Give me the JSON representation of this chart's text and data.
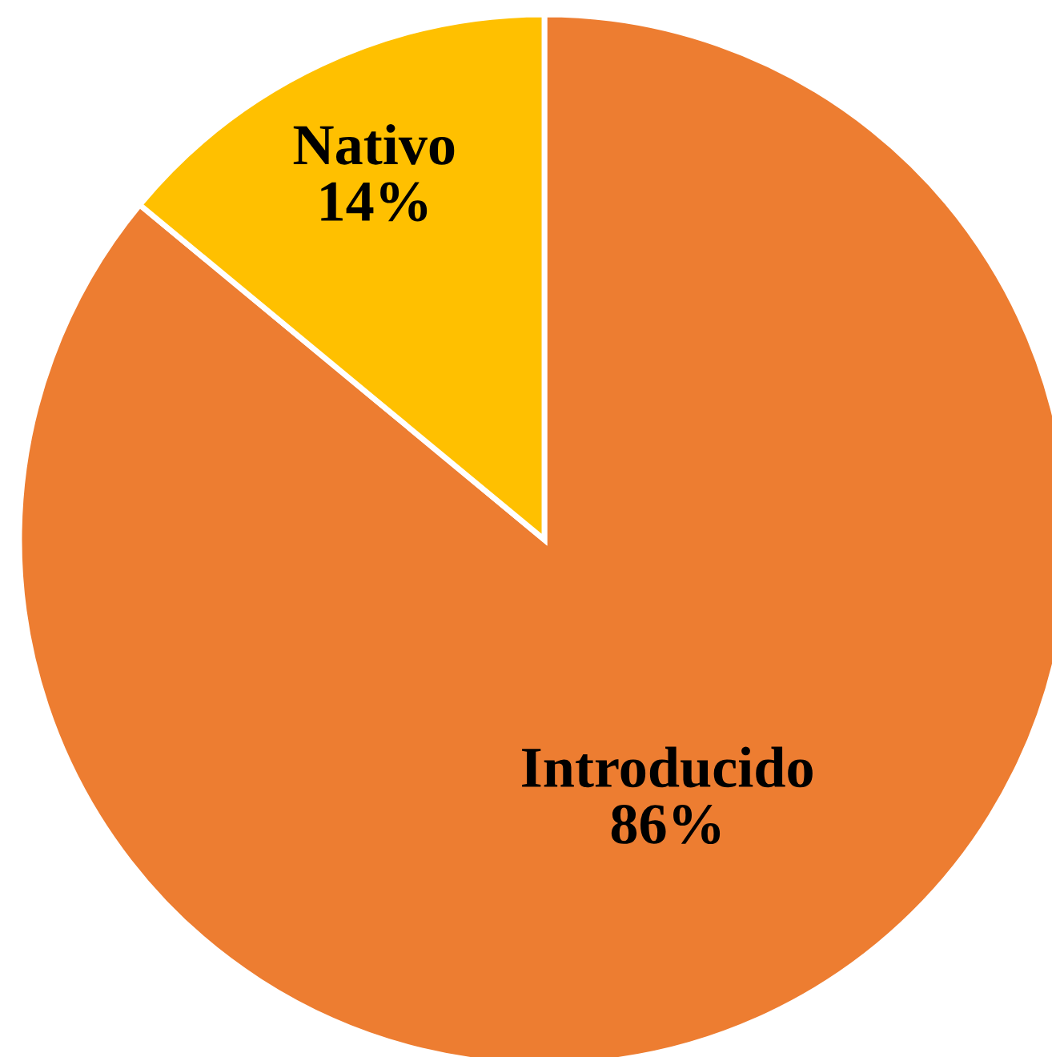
{
  "chart_data": {
    "type": "pie",
    "categories": [
      "Introducido",
      "Nativo"
    ],
    "values": [
      86,
      14
    ],
    "colors": [
      "#ed7d31",
      "#ffc000"
    ],
    "value_labels": [
      "86%",
      "14%"
    ]
  }
}
